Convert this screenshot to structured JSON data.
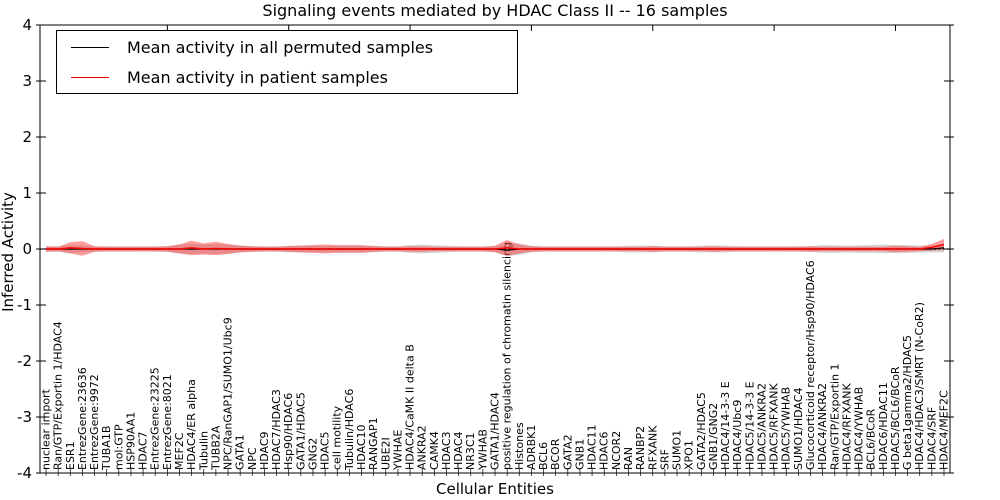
{
  "figure": {
    "title": "Signaling events mediated by HDAC Class II -- 16 samples",
    "xlabel": "Cellular Entities",
    "ylabel": "Inferred Activity",
    "legend": [
      {
        "label": "Mean activity in all permuted samples",
        "color": "#000000"
      },
      {
        "label": "Mean activity in patient samples",
        "color": "#ff0000"
      }
    ]
  },
  "chart_data": {
    "type": "line",
    "title": "Signaling events mediated by HDAC Class II -- 16 samples",
    "xlabel": "Cellular Entities",
    "ylabel": "Inferred Activity",
    "ylim": [
      -4,
      4
    ],
    "yticks": [
      4,
      3,
      2,
      1,
      0,
      -1,
      -2,
      -3,
      -4
    ],
    "grid": false,
    "legend_position": "upper left",
    "x_tick_rotation": 90,
    "categories": [
      "nuclear import",
      "Ran/GTP/Exportin 1/HDAC4",
      "ESR1",
      "EntrezGene:23636",
      "EntrezGene:9972",
      "TUBA1B",
      "mol:GTP",
      "HSP90AA1",
      "HDAC7",
      "EntrezGene:23225",
      "EntrezGene:8021",
      "MEF2C",
      "HDAC4/ER alpha",
      "Tubulin",
      "TUBB2A",
      "NPC/RanGAP1/SUMO1/Ubc9",
      "GATA1",
      "NPC",
      "HDAC9",
      "HDAC7/HDAC3",
      "Hsp90/HDAC6",
      "GATA1/HDAC5",
      "GNG2",
      "HDAC5",
      "cell motility",
      "Tubulin/HDAC6",
      "HDAC10",
      "RANGAP1",
      "UBE2I",
      "YWHAE",
      "HDAC4/CaMK II delta B",
      "ANKRA2",
      "CAMK4",
      "HDAC3",
      "HDAC4",
      "NR3C1",
      "YWHAB",
      "GATA1/HDAC4",
      "positive regulation of chromatin silencing",
      "Histones",
      "ADRBK1",
      "BCL6",
      "BCOR",
      "GATA2",
      "GNB1",
      "HDAC11",
      "HDAC6",
      "NCOR2",
      "RAN",
      "RANBP2",
      "RFXANK",
      "SRF",
      "SUMO1",
      "XPO1",
      "GATA2/HDAC5",
      "GNB1/GNG2",
      "HDAC4/14-3-3 E",
      "HDAC4/Ubc9",
      "HDAC5/14-3-3 E",
      "HDAC5/ANKRA2",
      "HDAC5/RFXANK",
      "HDAC5/YWHAB",
      "SUMO1/HDAC4",
      "Glucocorticoid receptor/Hsp90/HDAC6",
      "HDAC4/ANKRA2",
      "Ran/GTP/Exportin 1",
      "HDAC4/RFXANK",
      "HDAC4/YWHAB",
      "BCL6/BCoR",
      "HDAC6/HDAC11",
      "HDAC5/BCL6/BCoR",
      "G beta1gamma2/HDAC5",
      "HDAC4/HDAC3/SMRT (N-CoR2)",
      "HDAC4/SRF",
      "HDAC4/MEF2C"
    ],
    "series": [
      {
        "name": "Mean activity in all permuted samples",
        "color": "#000000",
        "band_color": "#888888",
        "band_opacity": 0.35,
        "values": [
          0,
          0,
          0,
          0,
          0,
          0,
          0,
          0,
          0,
          0,
          0,
          0,
          0,
          0,
          0,
          0,
          0,
          0,
          0,
          0,
          0,
          0,
          0,
          0,
          0,
          0,
          0,
          0,
          0,
          0,
          0,
          0,
          0,
          0,
          0,
          0,
          0,
          0,
          -0.02,
          0,
          0,
          0,
          0,
          0,
          0,
          0,
          0,
          0,
          0,
          0,
          0,
          0,
          0,
          0,
          0,
          0,
          0,
          0,
          0,
          0,
          0,
          0,
          0,
          0,
          0,
          0,
          0,
          0,
          0,
          0,
          0,
          0,
          0,
          0,
          0.02
        ],
        "band_halfwidth": [
          0.05,
          0.05,
          0.07,
          0.06,
          0.05,
          0.05,
          0.05,
          0.05,
          0.05,
          0.05,
          0.05,
          0.08,
          0.09,
          0.08,
          0.09,
          0.08,
          0.06,
          0.05,
          0.05,
          0.05,
          0.06,
          0.06,
          0.06,
          0.06,
          0.06,
          0.06,
          0.06,
          0.06,
          0.05,
          0.05,
          0.07,
          0.08,
          0.07,
          0.06,
          0.05,
          0.05,
          0.05,
          0.05,
          0.11,
          0.1,
          0.06,
          0.05,
          0.05,
          0.05,
          0.05,
          0.05,
          0.05,
          0.05,
          0.06,
          0.06,
          0.06,
          0.05,
          0.05,
          0.05,
          0.06,
          0.06,
          0.06,
          0.05,
          0.05,
          0.05,
          0.05,
          0.05,
          0.05,
          0.05,
          0.07,
          0.07,
          0.06,
          0.07,
          0.07,
          0.08,
          0.07,
          0.07,
          0.06,
          0.06,
          0.08
        ]
      },
      {
        "name": "Mean activity in patient samples",
        "color": "#ff0000",
        "band_color": "#fc3c3c",
        "band_opacity": 0.5,
        "values": [
          0,
          0,
          0.02,
          0.01,
          0,
          0,
          0,
          0,
          0,
          0,
          0,
          0,
          0.02,
          0,
          0.01,
          0,
          0,
          0,
          0,
          0,
          0,
          0,
          0,
          0,
          0,
          0,
          0,
          0,
          0,
          0,
          0,
          0,
          0,
          0,
          0,
          0,
          0,
          0,
          0.02,
          0,
          0,
          0,
          0,
          0,
          0,
          0,
          0,
          0,
          0,
          0,
          0,
          0,
          0,
          0,
          0,
          0,
          0,
          0,
          0,
          0,
          0,
          0,
          0,
          0,
          0,
          0,
          0,
          0,
          0,
          0,
          0,
          0,
          0,
          0.03,
          0.08
        ],
        "band_halfwidth": [
          0.05,
          0.04,
          0.1,
          0.13,
          0.05,
          0.04,
          0.04,
          0.04,
          0.04,
          0.04,
          0.05,
          0.08,
          0.13,
          0.1,
          0.12,
          0.09,
          0.06,
          0.05,
          0.04,
          0.04,
          0.05,
          0.06,
          0.07,
          0.08,
          0.07,
          0.07,
          0.07,
          0.05,
          0.04,
          0.04,
          0.05,
          0.05,
          0.04,
          0.04,
          0.04,
          0.04,
          0.04,
          0.06,
          0.14,
          0.08,
          0.05,
          0.04,
          0.04,
          0.04,
          0.04,
          0.04,
          0.04,
          0.04,
          0.04,
          0.04,
          0.05,
          0.04,
          0.04,
          0.04,
          0.04,
          0.05,
          0.04,
          0.04,
          0.04,
          0.04,
          0.04,
          0.04,
          0.04,
          0.05,
          0.04,
          0.04,
          0.04,
          0.04,
          0.04,
          0.04,
          0.06,
          0.05,
          0.04,
          0.06,
          0.1
        ]
      }
    ],
    "zero_line": {
      "style": "dotted",
      "color": "#000000",
      "y": 0
    }
  }
}
